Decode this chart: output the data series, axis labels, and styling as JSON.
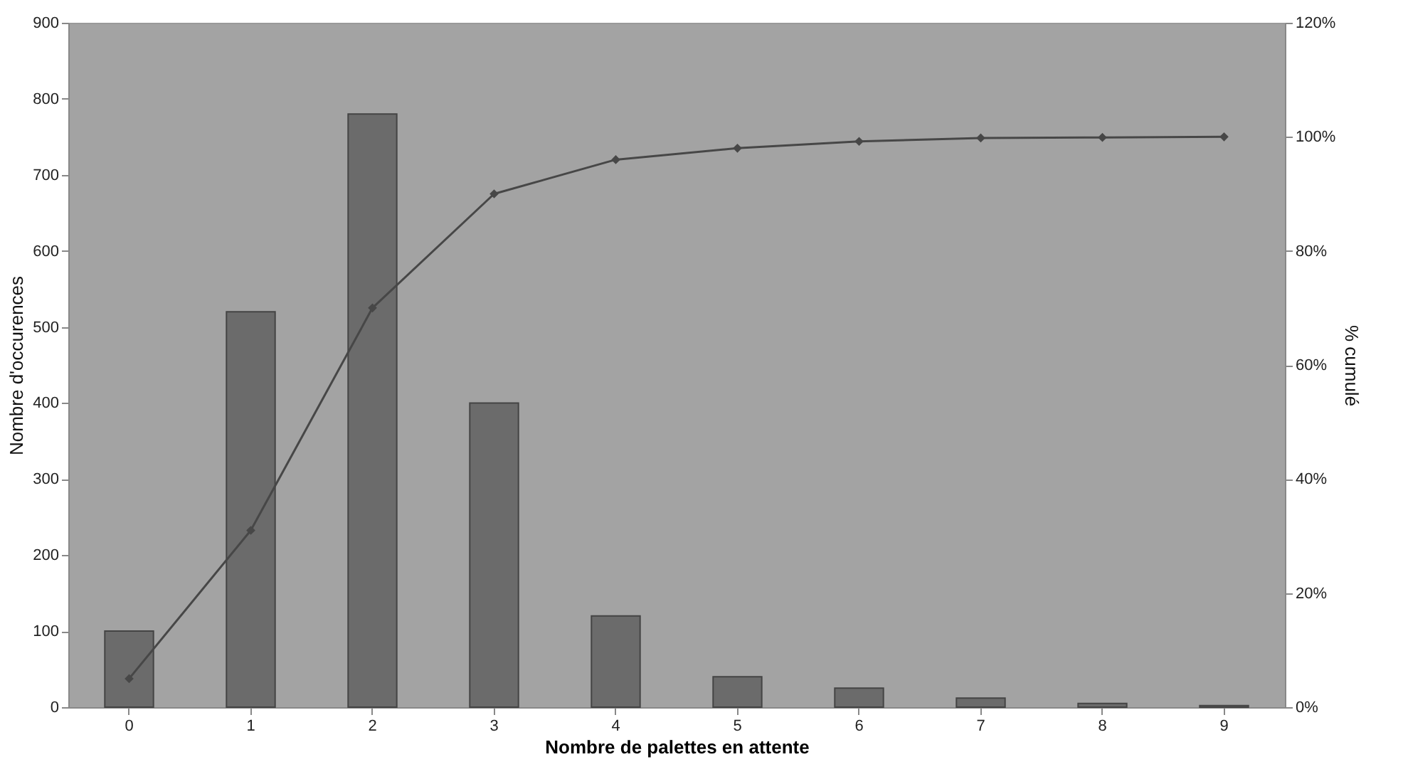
{
  "chart_data": {
    "type": "bar",
    "xlabel": "Nombre de palettes en attente",
    "ylabel": "Nombre d'occurences",
    "y2label": "% cumulé",
    "categories": [
      "0",
      "1",
      "2",
      "3",
      "4",
      "5",
      "6",
      "7",
      "8",
      "9"
    ],
    "series": [
      {
        "color": "#6b6b6b",
        "values": [
          100,
          520,
          780,
          400,
          120,
          40,
          25,
          12,
          5,
          2
        ]
      },
      {
        "type": "line",
        "axis": "y2",
        "color": "#474747",
        "marker": "diamond",
        "line_style": "solid",
        "values": [
          5,
          31,
          70,
          90,
          96,
          98,
          99.2,
          99.8,
          99.9,
          100
        ]
      }
    ],
    "ylim": [
      0,
      900
    ],
    "yticks": [
      0,
      100,
      200,
      300,
      400,
      500,
      600,
      700,
      800,
      900
    ],
    "y2lim": [
      0,
      120
    ],
    "y2ticks": [
      {
        "value": 0,
        "label": "0%"
      },
      {
        "value": 20,
        "label": "20%"
      },
      {
        "value": 40,
        "label": "40%"
      },
      {
        "value": 60,
        "label": "60%"
      },
      {
        "value": 80,
        "label": "80%"
      },
      {
        "value": 100,
        "label": "100%"
      },
      {
        "value": 120,
        "label": "120%"
      }
    ],
    "grid": false
  }
}
